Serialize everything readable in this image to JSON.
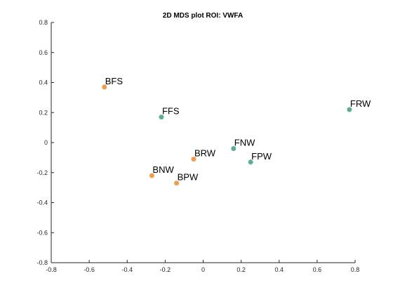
{
  "chart_data": {
    "type": "scatter",
    "title": "2D MDS plot ROI: VWFA",
    "xlabel": "",
    "ylabel": "",
    "xlim": [
      -0.8,
      0.8
    ],
    "ylim": [
      -0.8,
      0.8
    ],
    "x_ticks": [
      -0.8,
      -0.6,
      -0.4,
      -0.2,
      0,
      0.2,
      0.4,
      0.6,
      0.8
    ],
    "y_ticks": [
      -0.8,
      -0.6,
      -0.4,
      -0.2,
      0,
      0.2,
      0.4,
      0.6,
      0.8
    ],
    "grid": false,
    "colors": {
      "B": "#f39a4b",
      "F": "#5fae8e"
    },
    "points": [
      {
        "label": "BFS",
        "x": -0.52,
        "y": 0.37,
        "group": "B"
      },
      {
        "label": "FFS",
        "x": -0.22,
        "y": 0.17,
        "group": "F"
      },
      {
        "label": "FRW",
        "x": 0.77,
        "y": 0.22,
        "group": "F"
      },
      {
        "label": "FNW",
        "x": 0.16,
        "y": -0.04,
        "group": "F"
      },
      {
        "label": "FPW",
        "x": 0.25,
        "y": -0.13,
        "group": "F"
      },
      {
        "label": "BRW",
        "x": -0.05,
        "y": -0.11,
        "group": "B"
      },
      {
        "label": "BNW",
        "x": -0.27,
        "y": -0.22,
        "group": "B"
      },
      {
        "label": "BPW",
        "x": -0.14,
        "y": -0.27,
        "group": "B"
      }
    ]
  }
}
